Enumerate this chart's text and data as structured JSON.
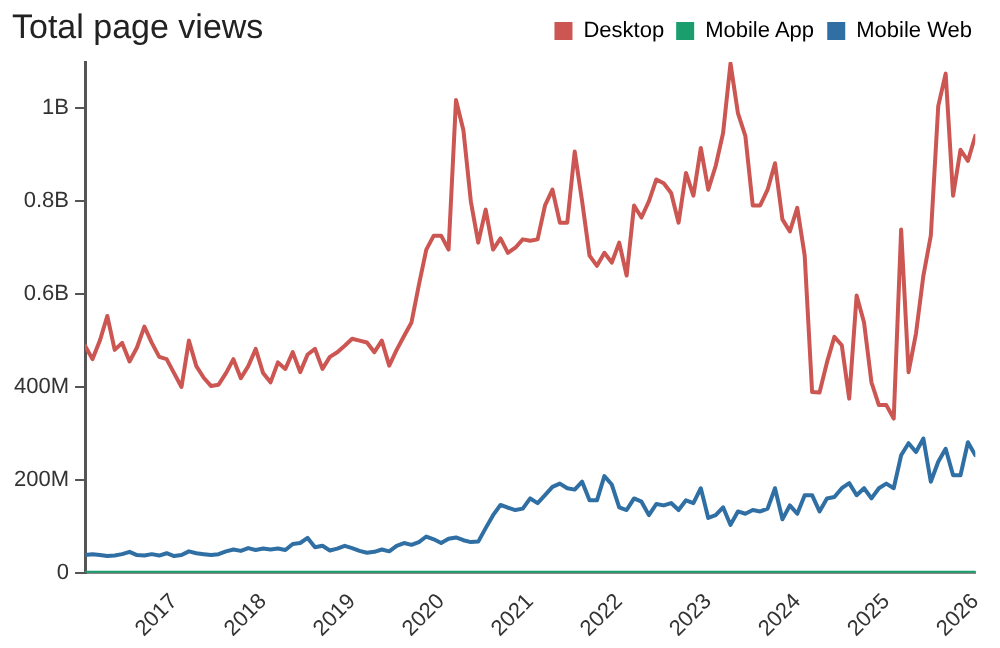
{
  "chart_data": {
    "type": "line",
    "title": "Total page views",
    "x": [
      "2016-01",
      "2016-02",
      "2016-03",
      "2016-04",
      "2016-05",
      "2016-06",
      "2016-07",
      "2016-08",
      "2016-09",
      "2016-10",
      "2016-11",
      "2016-12",
      "2017-01",
      "2017-02",
      "2017-03",
      "2017-04",
      "2017-05",
      "2017-06",
      "2017-07",
      "2017-08",
      "2017-09",
      "2017-10",
      "2017-11",
      "2017-12",
      "2018-01",
      "2018-02",
      "2018-03",
      "2018-04",
      "2018-05",
      "2018-06",
      "2018-07",
      "2018-08",
      "2018-09",
      "2018-10",
      "2018-11",
      "2018-12",
      "2019-01",
      "2019-02",
      "2019-03",
      "2019-04",
      "2019-05",
      "2019-06",
      "2019-07",
      "2019-08",
      "2019-09",
      "2019-10",
      "2019-11",
      "2019-12",
      "2020-01",
      "2020-02",
      "2020-03",
      "2020-04",
      "2020-05",
      "2020-06",
      "2020-07",
      "2020-08",
      "2020-09",
      "2020-10",
      "2020-11",
      "2020-12",
      "2021-01",
      "2021-02",
      "2021-03",
      "2021-04",
      "2021-05",
      "2021-06",
      "2021-07",
      "2021-08",
      "2021-09",
      "2021-10",
      "2021-11",
      "2021-12",
      "2022-01",
      "2022-02",
      "2022-03",
      "2022-04",
      "2022-05",
      "2022-06",
      "2022-07",
      "2022-08",
      "2022-09",
      "2022-10",
      "2022-11",
      "2022-12",
      "2023-01",
      "2023-02",
      "2023-03",
      "2023-04",
      "2023-05",
      "2023-06",
      "2023-07",
      "2023-08",
      "2023-09",
      "2023-10",
      "2023-11",
      "2023-12",
      "2024-01",
      "2024-02",
      "2024-03",
      "2024-04",
      "2024-05",
      "2024-06",
      "2024-07",
      "2024-08",
      "2024-09",
      "2024-10",
      "2024-11",
      "2024-12",
      "2025-01",
      "2025-02",
      "2025-03",
      "2025-04",
      "2025-05",
      "2025-06",
      "2025-07",
      "2025-08",
      "2025-09",
      "2025-10",
      "2025-11",
      "2025-12",
      "2026-01"
    ],
    "series": [
      {
        "name": "Desktop",
        "color": "#cc5652",
        "values": [
          489000000,
          460000000,
          500000000,
          553000000,
          480000000,
          495000000,
          455000000,
          485000000,
          530000000,
          495000000,
          465000000,
          460000000,
          430000000,
          400000000,
          500000000,
          445000000,
          420000000,
          402000000,
          405000000,
          430000000,
          460000000,
          419000000,
          445000000,
          482000000,
          430000000,
          410000000,
          453000000,
          439000000,
          475000000,
          432000000,
          470000000,
          482000000,
          439000000,
          465000000,
          475000000,
          489000000,
          504000000,
          500000000,
          496000000,
          475000000,
          500000000,
          446000000,
          480000000,
          510000000,
          539000000,
          620000000,
          696000000,
          726000000,
          726000000,
          696000000,
          1018000000,
          953000000,
          800000000,
          711000000,
          782000000,
          696000000,
          720000000,
          689000000,
          700000000,
          718000000,
          715000000,
          718000000,
          791000000,
          825000000,
          754000000,
          754000000,
          907000000,
          800000000,
          683000000,
          661000000,
          689000000,
          668000000,
          711000000,
          640000000,
          791000000,
          765000000,
          800000000,
          847000000,
          839000000,
          818000000,
          754000000,
          861000000,
          812000000,
          915000000,
          825000000,
          876000000,
          947000000,
          1097000000,
          990000000,
          941000000,
          791000000,
          791000000,
          825000000,
          882000000,
          761000000,
          735000000,
          786000000,
          683000000,
          389000000,
          388000000,
          453000000,
          508000000,
          490000000,
          375000000,
          597000000,
          539000000,
          410000000,
          361000000,
          361000000,
          332000000,
          739000000,
          432000000,
          515000000,
          640000000,
          726000000,
          1005000000,
          1075000000,
          812000000,
          911000000,
          887000000,
          941000000
        ]
      },
      {
        "name": "Mobile App",
        "color": "#1a9e6e",
        "values": [
          0,
          0,
          0,
          0,
          0,
          0,
          0,
          0,
          0,
          0,
          0,
          0,
          0,
          0,
          0,
          0,
          0,
          0,
          0,
          0,
          0,
          0,
          0,
          0,
          0,
          0,
          0,
          0,
          0,
          0,
          0,
          0,
          0,
          0,
          0,
          0,
          0,
          0,
          0,
          0,
          0,
          0,
          0,
          0,
          0,
          0,
          0,
          0,
          0,
          0,
          0,
          0,
          0,
          0,
          0,
          0,
          0,
          0,
          0,
          0,
          0,
          0,
          0,
          0,
          0,
          0,
          0,
          0,
          0,
          0,
          0,
          0,
          0,
          0,
          0,
          0,
          0,
          0,
          0,
          0,
          0,
          0,
          0,
          0,
          0,
          0,
          0,
          0,
          0,
          0,
          0,
          0,
          0,
          0,
          0,
          0,
          0,
          0,
          0,
          0,
          0,
          0,
          0,
          0,
          0,
          0,
          0,
          0,
          0,
          0,
          0,
          0,
          0,
          0,
          0,
          0,
          0,
          0,
          0,
          0,
          0
        ]
      },
      {
        "name": "Mobile Web",
        "color": "#2f6fa3",
        "values": [
          38000000,
          40000000,
          38000000,
          36000000,
          37000000,
          40000000,
          45000000,
          38000000,
          37000000,
          40000000,
          37000000,
          42000000,
          36000000,
          38000000,
          46000000,
          42000000,
          40000000,
          38000000,
          40000000,
          46000000,
          50000000,
          47000000,
          53000000,
          49000000,
          52000000,
          50000000,
          52000000,
          49000000,
          62000000,
          64000000,
          75000000,
          55000000,
          58000000,
          48000000,
          52000000,
          58000000,
          53000000,
          47000000,
          43000000,
          45000000,
          50000000,
          46000000,
          58000000,
          64000000,
          60000000,
          66000000,
          78000000,
          72000000,
          64000000,
          73000000,
          76000000,
          70000000,
          66000000,
          67000000,
          96000000,
          124000000,
          146000000,
          140000000,
          135000000,
          138000000,
          160000000,
          150000000,
          167000000,
          185000000,
          192000000,
          182000000,
          179000000,
          196000000,
          156000000,
          156000000,
          208000000,
          190000000,
          141000000,
          135000000,
          160000000,
          153000000,
          124000000,
          148000000,
          145000000,
          150000000,
          135000000,
          156000000,
          150000000,
          182000000,
          118000000,
          124000000,
          141000000,
          103000000,
          132000000,
          127000000,
          135000000,
          132000000,
          138000000,
          182000000,
          115000000,
          145000000,
          127000000,
          167000000,
          167000000,
          132000000,
          160000000,
          163000000,
          182000000,
          193000000,
          167000000,
          182000000,
          160000000,
          182000000,
          192000000,
          182000000,
          253000000,
          279000000,
          260000000,
          289000000,
          196000000,
          239000000,
          267000000,
          210000000,
          210000000,
          281000000,
          253000000
        ]
      }
    ],
    "xlim": [
      "2016-01",
      "2026-01"
    ],
    "xticks": [
      "2017",
      "2018",
      "2019",
      "2020",
      "2021",
      "2022",
      "2023",
      "2024",
      "2025",
      "2026"
    ],
    "ylim": [
      0,
      1100000000
    ],
    "yticks": [
      0,
      {
        "value": 200000000,
        "label": "200M"
      },
      {
        "value": 400000000,
        "label": "400M"
      },
      {
        "value": 600000000,
        "label": "0.6B"
      },
      {
        "value": 800000000,
        "label": "0.8B"
      },
      {
        "value": 1000000000,
        "label": "1B"
      }
    ],
    "grid": false,
    "legend": "top right",
    "marker": "none",
    "line_style": "solid"
  }
}
